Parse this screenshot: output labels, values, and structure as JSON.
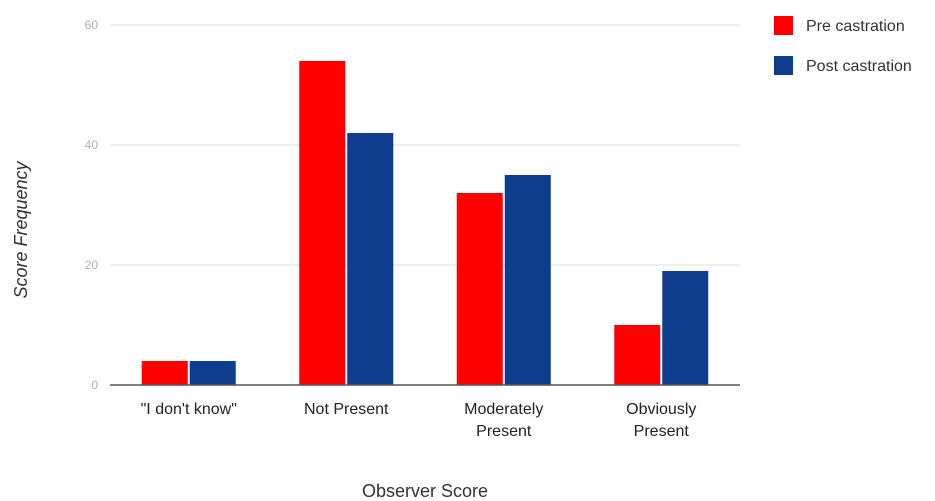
{
  "chart_data": {
    "type": "bar",
    "categories": [
      [
        "\"I don't know\""
      ],
      [
        "Not Present"
      ],
      [
        "Moderately",
        "Present"
      ],
      [
        "Obviously",
        "Present"
      ]
    ],
    "series": [
      {
        "name": "Pre castration",
        "values": [
          4,
          54,
          32,
          10
        ],
        "color": "#ff0000"
      },
      {
        "name": "Post castration",
        "values": [
          4,
          42,
          35,
          19
        ],
        "color": "#0d3d8c"
      }
    ],
    "xlabel": "Observer Score",
    "ylabel": "Score Frequency",
    "ylim": [
      0,
      60
    ],
    "yticks": [
      0,
      20,
      40,
      60
    ],
    "grid": true,
    "legend_position": "top-right"
  }
}
